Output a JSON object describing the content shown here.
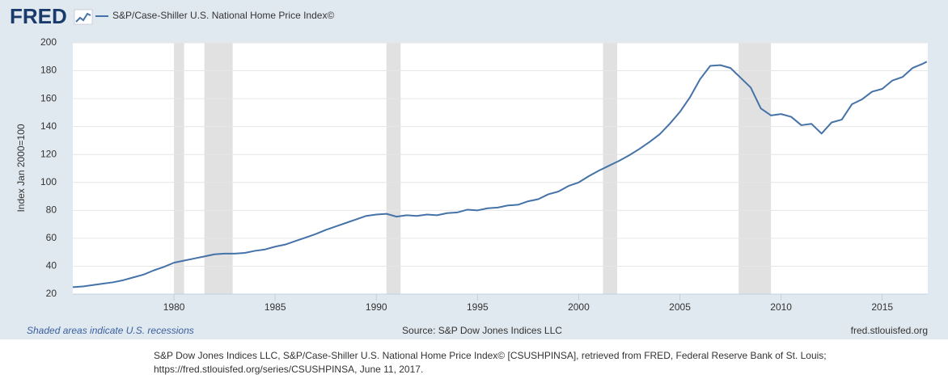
{
  "header": {
    "logo": "FRED"
  },
  "chart_data": {
    "type": "line",
    "x_label_unit": null,
    "y_label": "Index Jan 2000=100",
    "series": [
      {
        "name": "S&P/Case-Shiller U.S. National Home Price Index©",
        "color": "#4572a7",
        "values": [
          25,
          25.5,
          26.5,
          27.5,
          28.5,
          30,
          32,
          34,
          37,
          39.5,
          42.5,
          44,
          45.5,
          47,
          48.5,
          49,
          49,
          49.5,
          51,
          52,
          54,
          55.5,
          58,
          60.5,
          63,
          66,
          68.5,
          71,
          73.5,
          76,
          77,
          77.5,
          75.5,
          76.5,
          76,
          77,
          76.5,
          78,
          78.5,
          80.5,
          80,
          81.5,
          82,
          83.5,
          84,
          86.5,
          88,
          91.5,
          93.5,
          97.5,
          100,
          104.5,
          108.5,
          112,
          115.5,
          119.5,
          124,
          129,
          134.5,
          142,
          150.5,
          161,
          174,
          183.5,
          184,
          182,
          175,
          168,
          153,
          148,
          149,
          147,
          141,
          142,
          135,
          143,
          145,
          156,
          159.5,
          165,
          167,
          173,
          175.5,
          182,
          185,
          186.5
        ]
      }
    ],
    "x": [
      1975,
      1975.5,
      1976,
      1976.5,
      1977,
      1977.5,
      1978,
      1978.5,
      1979,
      1979.5,
      1980,
      1980.5,
      1981,
      1981.5,
      1982,
      1982.5,
      1983,
      1983.5,
      1984,
      1984.5,
      1985,
      1985.5,
      1986,
      1986.5,
      1987,
      1987.5,
      1988,
      1988.5,
      1989,
      1989.5,
      1990,
      1990.5,
      1991,
      1991.5,
      1992,
      1992.5,
      1993,
      1993.5,
      1994,
      1994.5,
      1995,
      1995.5,
      1996,
      1996.5,
      1997,
      1997.5,
      1998,
      1998.5,
      1999,
      1999.5,
      2000,
      2000.5,
      2001,
      2001.5,
      2002,
      2002.5,
      2003,
      2003.5,
      2004,
      2004.5,
      2005,
      2005.5,
      2006,
      2006.5,
      2007,
      2007.5,
      2008,
      2008.5,
      2009,
      2009.5,
      2010,
      2010.5,
      2011,
      2011.5,
      2012,
      2012.5,
      2013,
      2013.5,
      2014,
      2014.5,
      2015,
      2015.5,
      2016,
      2016.5,
      2017,
      2017.2
    ],
    "xlim": [
      1975,
      2017.25
    ],
    "xticks": [
      1980,
      1985,
      1990,
      1995,
      2000,
      2005,
      2010,
      2015
    ],
    "ylim": [
      20,
      200
    ],
    "yticks": [
      20,
      40,
      60,
      80,
      100,
      120,
      140,
      160,
      180,
      200
    ],
    "grid": true,
    "recessions": [
      [
        1980,
        1980.5
      ],
      [
        1981.5,
        1982.9
      ],
      [
        1990.5,
        1991.2
      ],
      [
        2001.2,
        2001.9
      ],
      [
        2007.9,
        2009.5
      ]
    ],
    "recession_color": "#e1e1e1"
  },
  "footer": {
    "recession_note": "Shaded areas indicate U.S. recessions",
    "source": "Source: S&P Dow Jones Indices LLC",
    "url": "fred.stlouisfed.org"
  },
  "citation": [
    "S&P Dow Jones Indices LLC, S&P/Case-Shiller U.S. National Home Price Index© [CSUSHPINSA], retrieved from FRED, Federal Reserve Bank of St. Louis;",
    "https://fred.stlouisfed.org/series/CSUSHPINSA, June 11, 2017."
  ]
}
